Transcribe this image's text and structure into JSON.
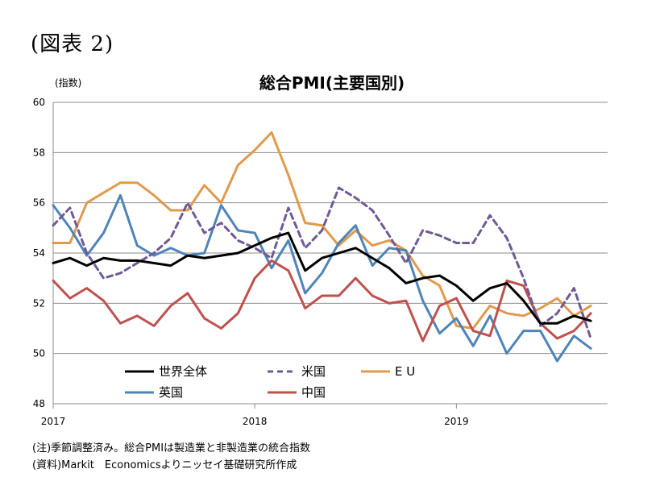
{
  "figure_label": "(図表 2)",
  "notes": [
    "(注)季節調整済み。総合PMIは製造業と非製造業の統合指数",
    "(資料)Markit　Economicsよりニッセイ基礎研究所作成"
  ],
  "chart_data": {
    "type": "line",
    "title": "総合PMI(主要国別)",
    "ylabel": "(指数)",
    "xlabel": "",
    "ylim": [
      48,
      60
    ],
    "yticks": [
      48,
      50,
      52,
      54,
      56,
      58,
      60
    ],
    "xtick_labels": [
      "2017",
      "2018",
      "2019"
    ],
    "x_start": "2017-01",
    "grid": true,
    "series": [
      {
        "name": "世界全体",
        "color": "#000000",
        "dash": "solid",
        "values": [
          53.6,
          53.8,
          53.5,
          53.8,
          53.7,
          53.7,
          53.6,
          53.5,
          53.9,
          53.8,
          53.9,
          54.0,
          54.3,
          54.6,
          54.8,
          53.3,
          53.8,
          54.0,
          54.2,
          53.8,
          53.4,
          52.8,
          53.0,
          53.1,
          52.7,
          52.1,
          52.6,
          52.8,
          52.1,
          51.2,
          51.2,
          51.5,
          51.3
        ]
      },
      {
        "name": "米国",
        "color": "#6f5a96",
        "dash": "dashed",
        "values": [
          55.1,
          55.8,
          54.0,
          53.0,
          53.2,
          53.6,
          54.0,
          54.6,
          56.0,
          54.8,
          55.2,
          54.5,
          54.2,
          53.8,
          55.8,
          54.2,
          54.9,
          56.6,
          56.2,
          55.7,
          54.7,
          53.6,
          54.9,
          54.7,
          54.4,
          54.4,
          55.5,
          54.6,
          53.0,
          51.1,
          51.6,
          52.6,
          50.6
        ]
      },
      {
        "name": "E U",
        "color": "#e09a4b",
        "dash": "solid",
        "values": [
          54.4,
          54.4,
          56.0,
          56.4,
          56.8,
          56.8,
          56.3,
          55.7,
          55.7,
          56.7,
          56.0,
          57.5,
          58.1,
          58.8,
          57.1,
          55.2,
          55.1,
          54.3,
          54.9,
          54.3,
          54.5,
          54.1,
          53.1,
          52.7,
          51.1,
          51.0,
          51.9,
          51.6,
          51.5,
          51.8,
          52.2,
          51.5,
          51.9
        ]
      },
      {
        "name": "英国",
        "color": "#4f84b8",
        "dash": "solid",
        "values": [
          55.9,
          55.0,
          53.9,
          54.8,
          56.3,
          54.3,
          53.9,
          54.2,
          53.9,
          54.0,
          55.9,
          54.9,
          54.8,
          53.4,
          54.5,
          52.4,
          53.2,
          54.4,
          55.1,
          53.5,
          54.2,
          54.1,
          52.1,
          50.8,
          51.4,
          50.3,
          51.5,
          50.0,
          50.9,
          50.9,
          49.7,
          50.7,
          50.2
        ]
      },
      {
        "name": "中国",
        "color": "#be514e",
        "dash": "solid",
        "values": [
          52.9,
          52.2,
          52.6,
          52.1,
          51.2,
          51.5,
          51.1,
          51.9,
          52.4,
          51.4,
          51.0,
          51.6,
          53.0,
          53.7,
          53.3,
          51.8,
          52.3,
          52.3,
          53.0,
          52.3,
          52.0,
          52.1,
          50.5,
          51.9,
          52.2,
          50.9,
          50.7,
          52.9,
          52.7,
          51.2,
          50.6,
          50.9,
          51.6
        ]
      }
    ],
    "legend_order": [
      0,
      1,
      2,
      3,
      4
    ],
    "legend_placement": "bottom-inside"
  }
}
